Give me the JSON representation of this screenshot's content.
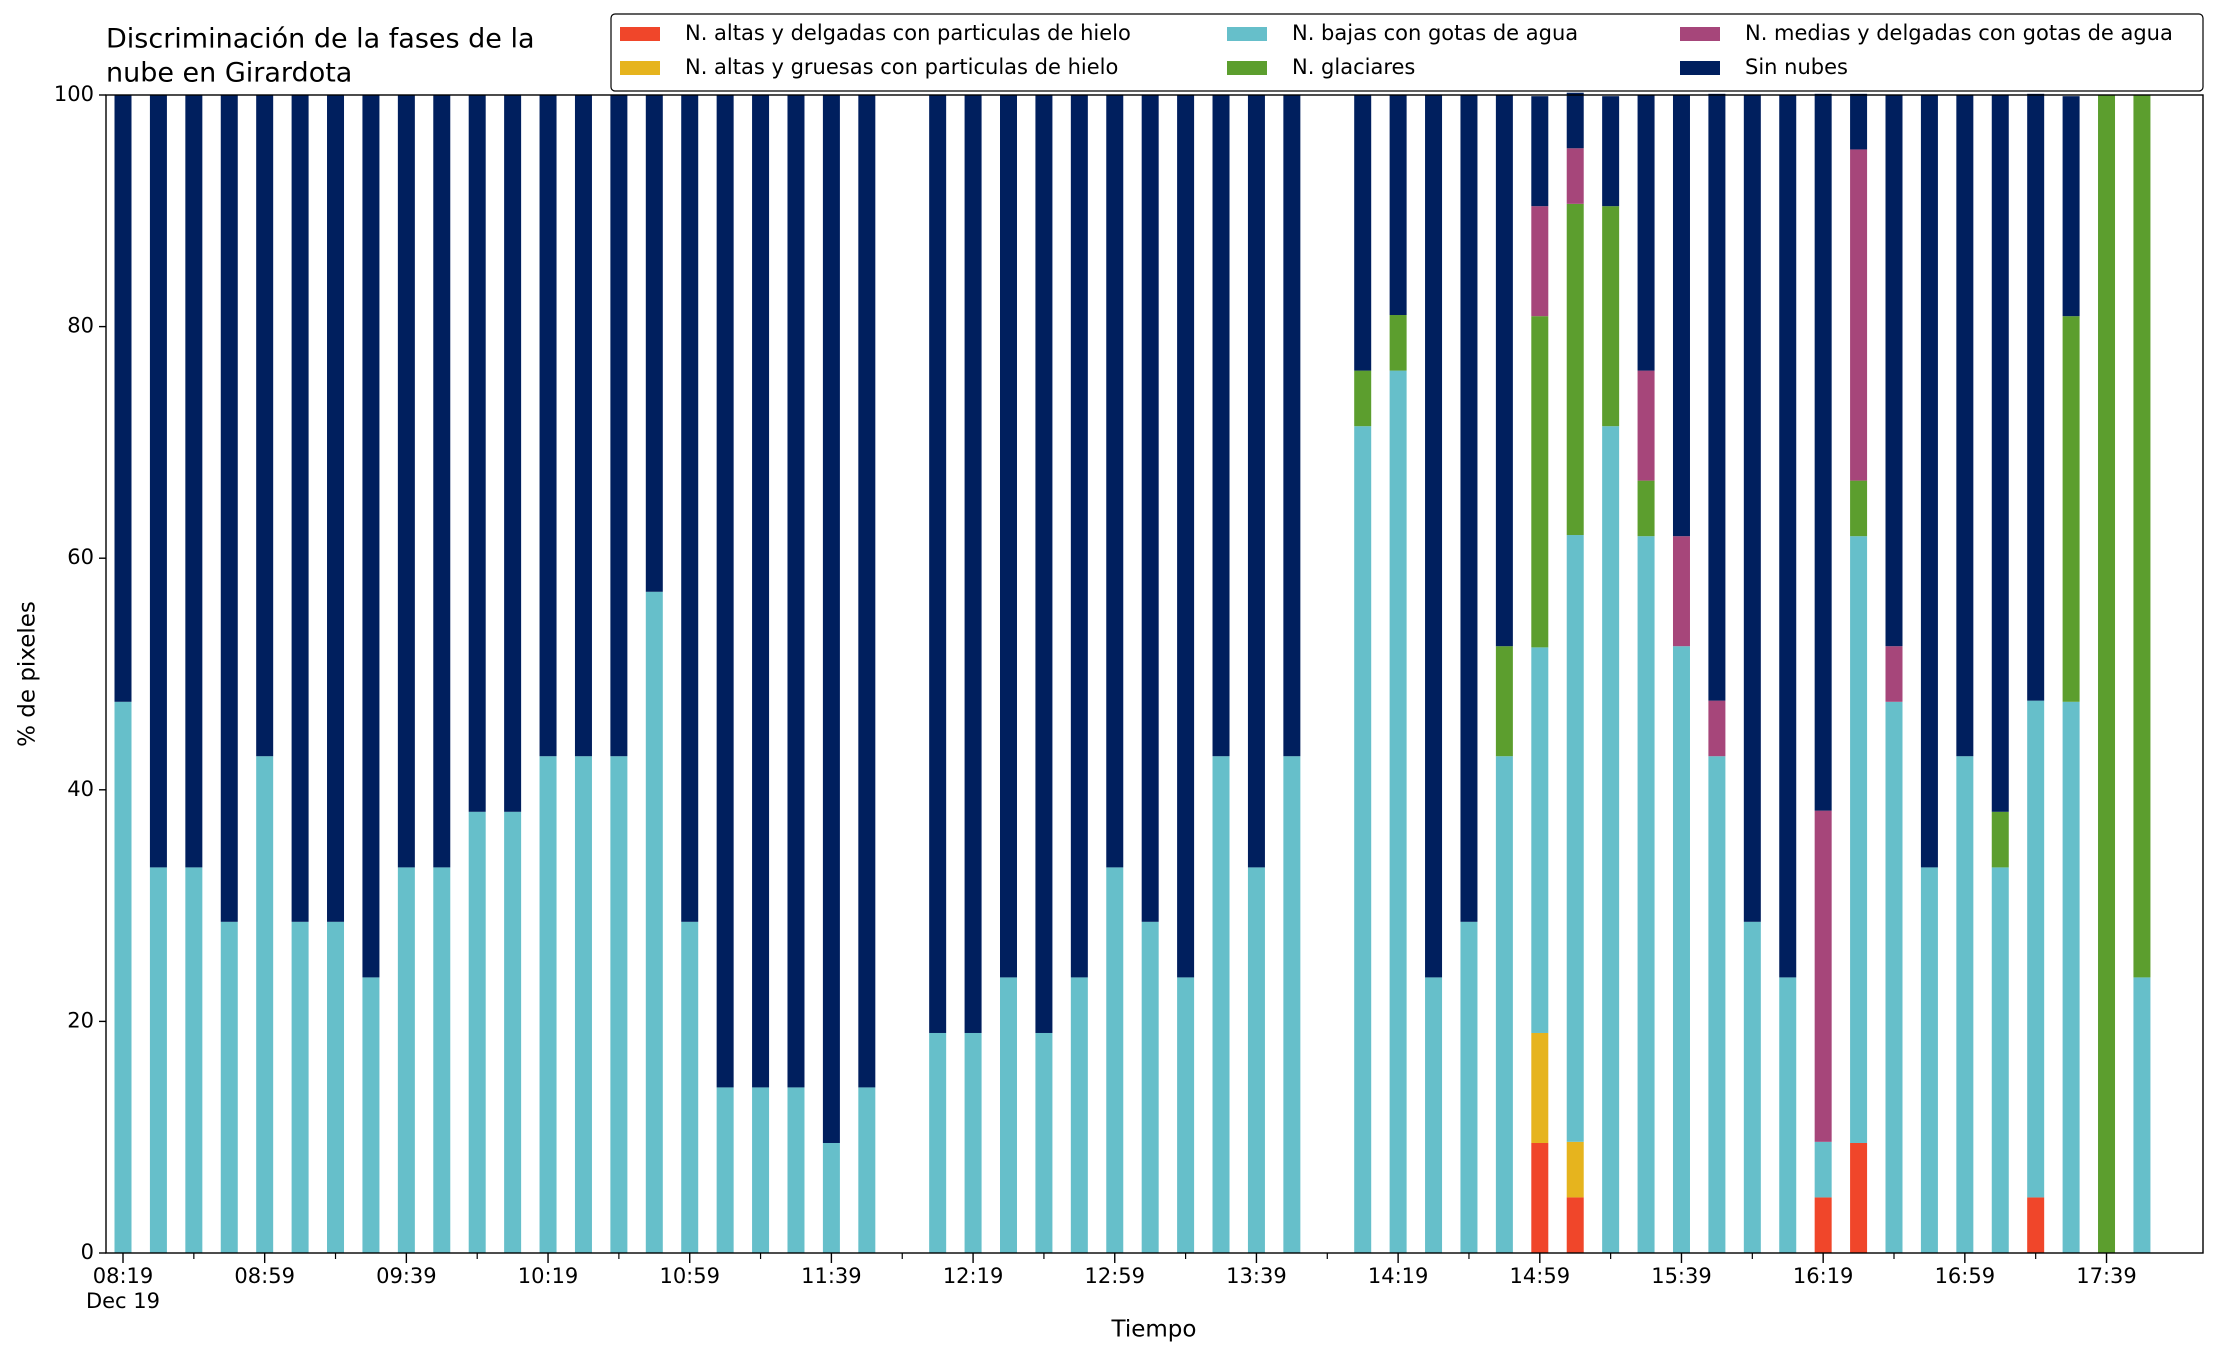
{
  "chart_data": {
    "type": "stacked_bar",
    "title": [
      "Discriminación de la fases de la",
      "nube en Girardota"
    ],
    "x_label": "Tiempo",
    "x_sublabel": "Dec 19",
    "y_label": "% de pixeles",
    "ylim": [
      0,
      100
    ],
    "yticks": [
      0,
      20,
      40,
      60,
      80,
      100
    ],
    "categories": [
      "08:19",
      null,
      null,
      null,
      "08:59",
      null,
      null,
      null,
      "09:39",
      null,
      null,
      null,
      "10:19",
      null,
      null,
      null,
      "10:59",
      null,
      null,
      null,
      "11:39",
      null,
      null,
      null,
      "12:19",
      null,
      null,
      null,
      "12:59",
      null,
      null,
      null,
      "13:39",
      null,
      null,
      null,
      "14:19",
      null,
      null,
      null,
      "14:59",
      null,
      null,
      null,
      "15:39",
      null,
      null,
      null,
      "16:19",
      null,
      null,
      null,
      "16:59",
      null,
      null,
      null,
      "17:39",
      null
    ],
    "series": [
      {
        "name": "N. altas y delgadas con particulas de hielo",
        "color": "#f0462a",
        "values": [
          0,
          0,
          0,
          0,
          0,
          0,
          0,
          0,
          0,
          0,
          0,
          0,
          0,
          0,
          0,
          0,
          0,
          0,
          0,
          0,
          0,
          0,
          null,
          0,
          0,
          0,
          0,
          0,
          0,
          0,
          0,
          0,
          0,
          0,
          null,
          0,
          0,
          0,
          0,
          0,
          9.5,
          4.8,
          0,
          0,
          0,
          0,
          0,
          0,
          4.8,
          9.5,
          0,
          0,
          0,
          0,
          4.8,
          0,
          0,
          0
        ]
      },
      {
        "name": "N. altas y gruesas con particulas de hielo",
        "color": "#e6b41e",
        "values": [
          0,
          0,
          0,
          0,
          0,
          0,
          0,
          0,
          0,
          0,
          0,
          0,
          0,
          0,
          0,
          0,
          0,
          0,
          0,
          0,
          0,
          0,
          null,
          0,
          0,
          0,
          0,
          0,
          0,
          0,
          0,
          0,
          0,
          0,
          null,
          0,
          0,
          0,
          0,
          0,
          9.5,
          4.8,
          0,
          0,
          0,
          0,
          0,
          0,
          0,
          0,
          0,
          0,
          0,
          0,
          0,
          0,
          0,
          0
        ]
      },
      {
        "name": "N. bajas con gotas de agua",
        "color": "#66bfca",
        "values": [
          47.6,
          33.3,
          33.3,
          28.6,
          42.9,
          28.6,
          28.6,
          23.8,
          33.3,
          33.3,
          38.1,
          38.1,
          42.9,
          42.9,
          42.9,
          57.1,
          28.6,
          14.3,
          14.3,
          14.3,
          9.5,
          14.3,
          null,
          19.0,
          19.0,
          23.8,
          19.0,
          23.8,
          33.3,
          28.6,
          23.8,
          42.9,
          33.3,
          42.9,
          null,
          71.4,
          76.2,
          23.8,
          28.6,
          42.9,
          33.3,
          52.4,
          71.4,
          61.9,
          52.4,
          42.9,
          28.6,
          23.8,
          4.8,
          52.4,
          47.6,
          33.3,
          42.9,
          33.3,
          42.9,
          47.6,
          0,
          23.8
        ]
      },
      {
        "name": "N. glaciares",
        "color": "#5c9e2e",
        "values": [
          0,
          0,
          0,
          0,
          0,
          0,
          0,
          0,
          0,
          0,
          0,
          0,
          0,
          0,
          0,
          0,
          0,
          0,
          0,
          0,
          0,
          0,
          null,
          0,
          0,
          0,
          0,
          0,
          0,
          0,
          0,
          0,
          0,
          0,
          null,
          4.8,
          4.8,
          0,
          0,
          9.5,
          28.6,
          28.6,
          19.0,
          4.8,
          0,
          0,
          0,
          0,
          0,
          4.8,
          0,
          0,
          0,
          4.8,
          0,
          33.3,
          100,
          76.2
        ]
      },
      {
        "name": "N. medias y delgadas con gotas de agua",
        "color": "#a6467a",
        "values": [
          0,
          0,
          0,
          0,
          0,
          0,
          0,
          0,
          0,
          0,
          0,
          0,
          0,
          0,
          0,
          0,
          0,
          0,
          0,
          0,
          0,
          0,
          null,
          0,
          0,
          0,
          0,
          0,
          0,
          0,
          0,
          0,
          0,
          0,
          null,
          0,
          0,
          0,
          0,
          0,
          9.5,
          4.8,
          0,
          9.5,
          9.5,
          4.8,
          0,
          0,
          28.6,
          28.6,
          4.8,
          0,
          0,
          0,
          0,
          0,
          0,
          0
        ]
      },
      {
        "name": "Sin nubes",
        "color": "#001f5e",
        "values": [
          52.4,
          66.7,
          66.7,
          71.4,
          57.1,
          71.4,
          71.4,
          76.2,
          66.7,
          66.7,
          61.9,
          61.9,
          57.1,
          57.1,
          57.1,
          42.9,
          71.4,
          85.7,
          85.7,
          85.7,
          90.5,
          85.7,
          null,
          81.0,
          81.0,
          76.2,
          81.0,
          76.2,
          66.7,
          71.4,
          76.2,
          57.1,
          66.7,
          57.1,
          null,
          23.8,
          19.0,
          76.2,
          71.4,
          47.6,
          9.5,
          4.8,
          9.5,
          23.8,
          38.1,
          52.4,
          71.4,
          76.2,
          61.9,
          4.8,
          47.6,
          66.7,
          57.1,
          61.9,
          52.4,
          19.0,
          0,
          0
        ]
      }
    ],
    "legend": "upper right"
  }
}
